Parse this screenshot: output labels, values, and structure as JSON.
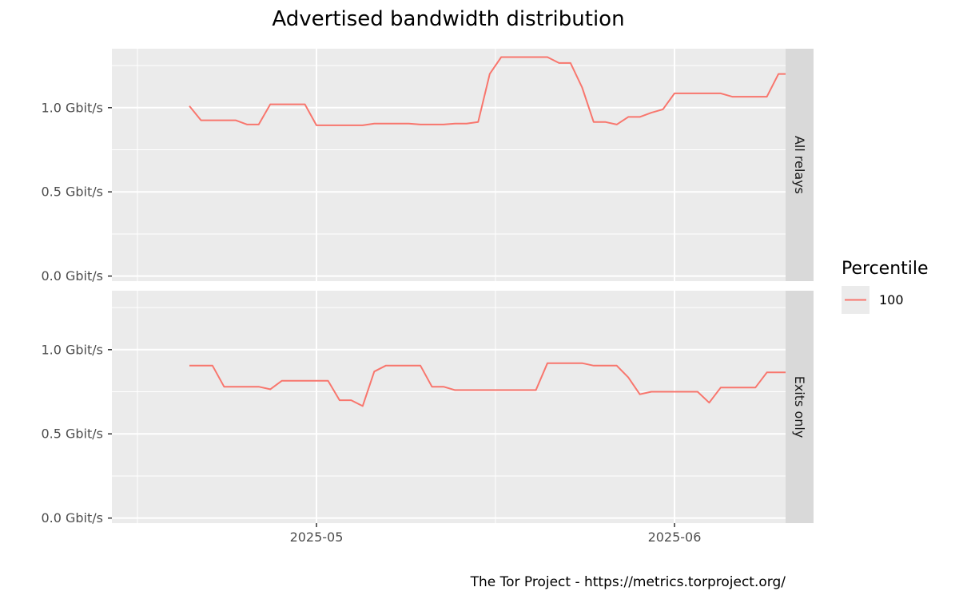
{
  "chart_data": {
    "type": "line",
    "title": "Advertised bandwidth distribution",
    "caption": "The Tor Project - https://metrics.torproject.org/",
    "x_ticks": [
      {
        "date": "2025-05-01",
        "label": "2025-05"
      },
      {
        "date": "2025-06-01",
        "label": "2025-06"
      }
    ],
    "xlim": [
      "2025-04-18",
      "2025-06-08"
    ],
    "y_ticks": [
      {
        "value": 0.0,
        "label": "0.0 Gbit/s"
      },
      {
        "value": 0.5,
        "label": "0.5 Gbit/s"
      },
      {
        "value": 1.0,
        "label": "1.0 Gbit/s"
      }
    ],
    "ylim": [
      -0.03,
      1.35
    ],
    "y_unit": "Gbit/s",
    "grid": true,
    "legend": {
      "title": "Percentile",
      "position": "right",
      "entries": [
        {
          "label": "100",
          "color": "#F8766D"
        }
      ]
    },
    "panels": [
      {
        "label": "All relays",
        "series": [
          {
            "name": "100",
            "color": "#F8766D",
            "points": [
              [
                "2025-04-20",
                1.01
              ],
              [
                "2025-04-21",
                0.925
              ],
              [
                "2025-04-22",
                0.925
              ],
              [
                "2025-04-23",
                0.925
              ],
              [
                "2025-04-24",
                0.925
              ],
              [
                "2025-04-25",
                0.9
              ],
              [
                "2025-04-26",
                0.9
              ],
              [
                "2025-04-27",
                1.02
              ],
              [
                "2025-04-28",
                1.02
              ],
              [
                "2025-04-29",
                1.02
              ],
              [
                "2025-04-30",
                1.02
              ],
              [
                "2025-05-01",
                0.895
              ],
              [
                "2025-05-02",
                0.895
              ],
              [
                "2025-05-03",
                0.895
              ],
              [
                "2025-05-04",
                0.895
              ],
              [
                "2025-05-05",
                0.895
              ],
              [
                "2025-05-06",
                0.905
              ],
              [
                "2025-05-07",
                0.905
              ],
              [
                "2025-05-08",
                0.905
              ],
              [
                "2025-05-09",
                0.905
              ],
              [
                "2025-05-10",
                0.9
              ],
              [
                "2025-05-11",
                0.9
              ],
              [
                "2025-05-12",
                0.9
              ],
              [
                "2025-05-13",
                0.905
              ],
              [
                "2025-05-14",
                0.905
              ],
              [
                "2025-05-15",
                0.915
              ],
              [
                "2025-05-16",
                1.2
              ],
              [
                "2025-05-17",
                1.3
              ],
              [
                "2025-05-18",
                1.3
              ],
              [
                "2025-05-19",
                1.3
              ],
              [
                "2025-05-20",
                1.3
              ],
              [
                "2025-05-21",
                1.3
              ],
              [
                "2025-05-22",
                1.265
              ],
              [
                "2025-05-23",
                1.265
              ],
              [
                "2025-05-24",
                1.12
              ],
              [
                "2025-05-25",
                0.915
              ],
              [
                "2025-05-26",
                0.915
              ],
              [
                "2025-05-27",
                0.9
              ],
              [
                "2025-05-28",
                0.945
              ],
              [
                "2025-05-29",
                0.945
              ],
              [
                "2025-05-30",
                0.97
              ],
              [
                "2025-05-31",
                0.99
              ],
              [
                "2025-06-01",
                1.085
              ],
              [
                "2025-06-02",
                1.085
              ],
              [
                "2025-06-03",
                1.085
              ],
              [
                "2025-06-04",
                1.085
              ],
              [
                "2025-06-05",
                1.085
              ],
              [
                "2025-06-06",
                1.065
              ],
              [
                "2025-06-07",
                1.065
              ],
              [
                "2025-06-08",
                1.065
              ],
              [
                "2025-06-09",
                1.065
              ],
              [
                "2025-06-10",
                1.2
              ],
              [
                "2025-06-11",
                1.2
              ]
            ]
          }
        ]
      },
      {
        "label": "Exits only",
        "series": [
          {
            "name": "100",
            "color": "#F8766D",
            "points": [
              [
                "2025-04-20",
                0.905
              ],
              [
                "2025-04-21",
                0.905
              ],
              [
                "2025-04-22",
                0.905
              ],
              [
                "2025-04-23",
                0.78
              ],
              [
                "2025-04-24",
                0.78
              ],
              [
                "2025-04-25",
                0.78
              ],
              [
                "2025-04-26",
                0.78
              ],
              [
                "2025-04-27",
                0.765
              ],
              [
                "2025-04-28",
                0.815
              ],
              [
                "2025-04-29",
                0.815
              ],
              [
                "2025-04-30",
                0.815
              ],
              [
                "2025-05-01",
                0.815
              ],
              [
                "2025-05-02",
                0.815
              ],
              [
                "2025-05-03",
                0.7
              ],
              [
                "2025-05-04",
                0.7
              ],
              [
                "2025-05-05",
                0.665
              ],
              [
                "2025-05-06",
                0.87
              ],
              [
                "2025-05-07",
                0.905
              ],
              [
                "2025-05-08",
                0.905
              ],
              [
                "2025-05-09",
                0.905
              ],
              [
                "2025-05-10",
                0.905
              ],
              [
                "2025-05-11",
                0.78
              ],
              [
                "2025-05-12",
                0.78
              ],
              [
                "2025-05-13",
                0.76
              ],
              [
                "2025-05-14",
                0.76
              ],
              [
                "2025-05-15",
                0.76
              ],
              [
                "2025-05-16",
                0.76
              ],
              [
                "2025-05-17",
                0.76
              ],
              [
                "2025-05-18",
                0.76
              ],
              [
                "2025-05-19",
                0.76
              ],
              [
                "2025-05-20",
                0.76
              ],
              [
                "2025-05-21",
                0.92
              ],
              [
                "2025-05-22",
                0.92
              ],
              [
                "2025-05-23",
                0.92
              ],
              [
                "2025-05-24",
                0.92
              ],
              [
                "2025-05-25",
                0.905
              ],
              [
                "2025-05-26",
                0.905
              ],
              [
                "2025-05-27",
                0.905
              ],
              [
                "2025-05-28",
                0.835
              ],
              [
                "2025-05-29",
                0.735
              ],
              [
                "2025-05-30",
                0.75
              ],
              [
                "2025-05-31",
                0.75
              ],
              [
                "2025-06-01",
                0.75
              ],
              [
                "2025-06-02",
                0.75
              ],
              [
                "2025-06-03",
                0.75
              ],
              [
                "2025-06-04",
                0.685
              ],
              [
                "2025-06-05",
                0.775
              ],
              [
                "2025-06-06",
                0.775
              ],
              [
                "2025-06-07",
                0.775
              ],
              [
                "2025-06-08",
                0.775
              ],
              [
                "2025-06-09",
                0.865
              ],
              [
                "2025-06-10",
                0.865
              ],
              [
                "2025-06-11",
                0.865
              ]
            ]
          }
        ]
      }
    ]
  }
}
